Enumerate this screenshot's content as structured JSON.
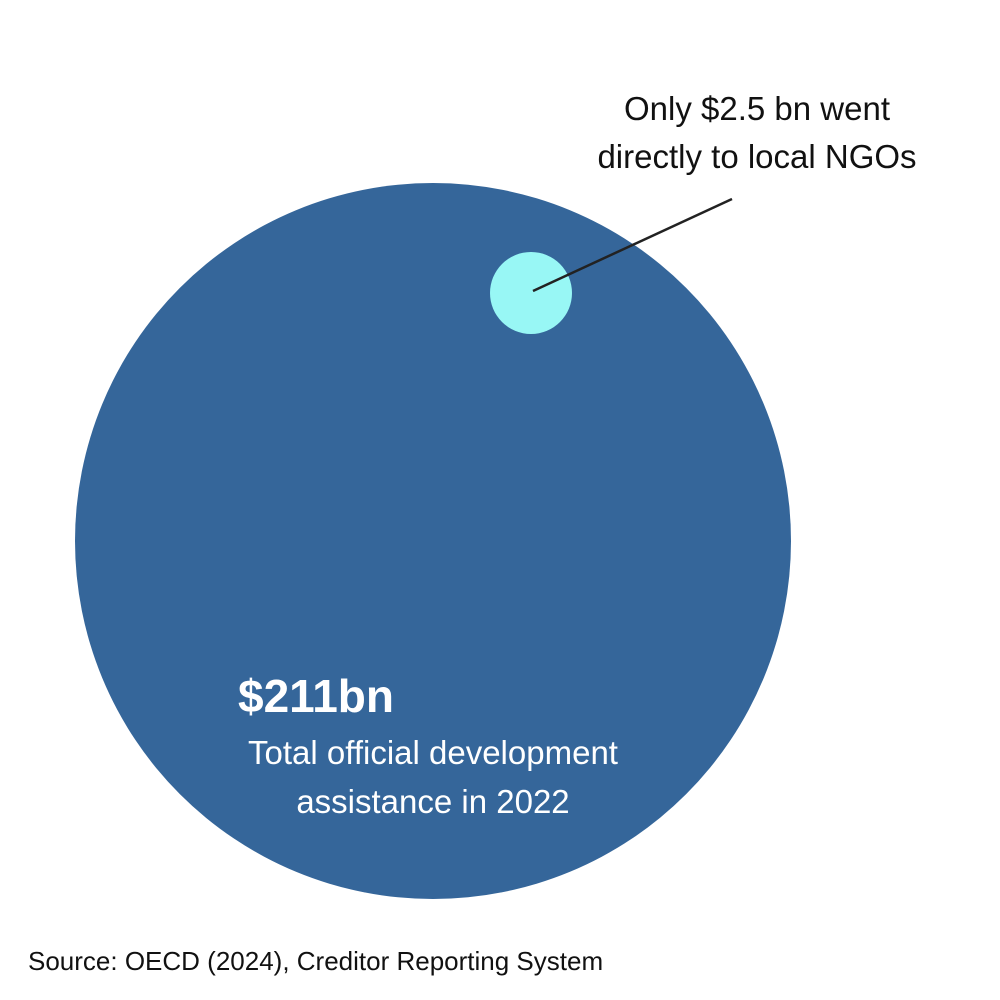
{
  "chart_data": {
    "type": "proportional-area",
    "unit": "USD billions",
    "year": 2022,
    "circles": [
      {
        "value": 211,
        "value_label": "$211bn",
        "label_lines": [
          "Total official development",
          "assistance in 2022"
        ],
        "color": "#35669a"
      },
      {
        "value": 2.5,
        "label_lines": [
          "Only $2.5 bn went",
          "directly to local NGOs"
        ],
        "color": "#98f7f5"
      }
    ]
  },
  "footer": {
    "source": "Source: OECD (2024), Creditor Reporting System"
  },
  "colors": {
    "callout_line": "#222222",
    "text_dark": "#111111",
    "text_light": "#ffffff"
  }
}
